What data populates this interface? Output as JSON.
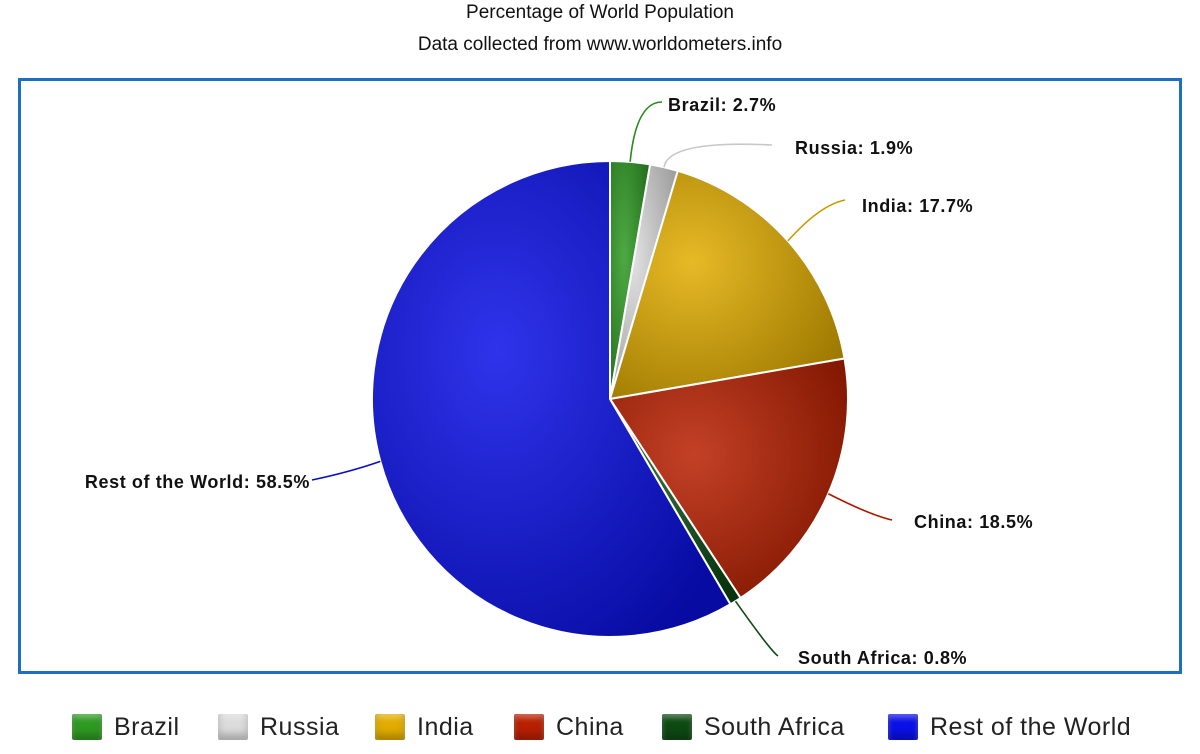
{
  "chart_data": {
    "type": "pie",
    "title": "Percentage of World Population",
    "subtitle": "Data collected from www.worldometers.info",
    "slices": [
      {
        "name": "Brazil",
        "value": 2.7,
        "label": "Brazil: 2.7%",
        "color": "#2e9a22"
      },
      {
        "name": "Russia",
        "value": 1.9,
        "label": "Russia: 1.9%",
        "color": "#dcdcdc"
      },
      {
        "name": "India",
        "value": 17.7,
        "label": "India: 17.7%",
        "color": "#e2ad00"
      },
      {
        "name": "China",
        "value": 18.5,
        "label": "China: 18.5%",
        "color": "#b82000"
      },
      {
        "name": "South Africa",
        "value": 0.8,
        "label": "South Africa: 0.8%",
        "color": "#0d4a12"
      },
      {
        "name": "Rest of the World",
        "value": 58.5,
        "label": "Rest of the World: 58.5%",
        "color": "#0a10e8"
      }
    ],
    "start_angle": "12 o'clock",
    "direction": "clockwise",
    "legend_position": "bottom"
  },
  "colors": {
    "frame_border": "#1f6fc0",
    "brazil_line": "#2a8a1e",
    "russia_line": "#c8c8c8",
    "india_line": "#c99a00",
    "china_line": "#a81c00",
    "south_africa_line": "#0d4a12",
    "rest_line": "#0a10c0"
  }
}
